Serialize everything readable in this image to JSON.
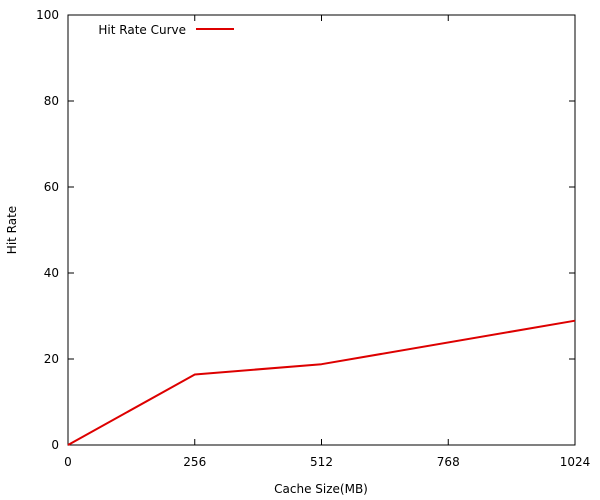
{
  "chart_data": {
    "type": "line",
    "title": "",
    "xlabel": "Cache Size(MB)",
    "ylabel": "Hit Rate",
    "xlim": [
      0,
      1024
    ],
    "ylim": [
      0,
      100
    ],
    "xticks": [
      0,
      256,
      512,
      768,
      1024
    ],
    "yticks": [
      0,
      20,
      40,
      60,
      80,
      100
    ],
    "grid": false,
    "legend_position": "top-left",
    "series": [
      {
        "name": "Hit Rate Curve",
        "color": "#dd0000",
        "x": [
          0,
          256,
          512,
          1024
        ],
        "y": [
          0,
          16.4,
          18.8,
          28.9
        ]
      }
    ]
  }
}
